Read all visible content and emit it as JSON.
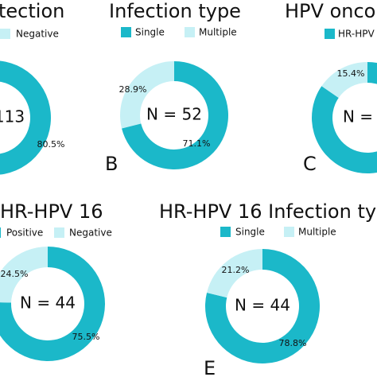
{
  "chart_data": [
    {
      "type": "pie",
      "donut": true,
      "title": "tection",
      "categories": [
        null,
        "Negative"
      ],
      "values": [
        80.5,
        19.5
      ],
      "value_labels": [
        "80.5%",
        null
      ],
      "colors": [
        "#1bb8c9",
        "#c6f0f5"
      ],
      "center_label": "113"
    },
    {
      "type": "pie",
      "donut": true,
      "title": "Infection type",
      "categories": [
        "Single",
        "Multiple"
      ],
      "values": [
        71.1,
        28.9
      ],
      "value_labels": [
        "71.1%",
        "28.9%"
      ],
      "colors": [
        "#1bb8c9",
        "#c6f0f5"
      ],
      "center_label": "N = 52",
      "panel_label": "B"
    },
    {
      "type": "pie",
      "donut": true,
      "title": "HPV onco",
      "categories": [
        "HR-HPV",
        null
      ],
      "values": [
        84.6,
        15.4
      ],
      "value_labels": [
        null,
        "15.4%"
      ],
      "colors": [
        "#1bb8c9",
        "#c6f0f5"
      ],
      "center_label": "N =",
      "panel_label": "C"
    },
    {
      "type": "pie",
      "donut": true,
      "title": "HR-HPV 16",
      "categories": [
        "Positive",
        "Negative"
      ],
      "values": [
        75.5,
        24.5
      ],
      "value_labels": [
        "75.5%",
        "24.5%"
      ],
      "colors": [
        "#1bb8c9",
        "#c6f0f5"
      ],
      "center_label": "N = 44"
    },
    {
      "type": "pie",
      "donut": true,
      "title": "HR-HPV 16 Infection typ",
      "categories": [
        "Single",
        "Multiple"
      ],
      "values": [
        78.8,
        21.2
      ],
      "value_labels": [
        "78.8%",
        "21.2%"
      ],
      "colors": [
        "#1bb8c9",
        "#c6f0f5"
      ],
      "center_label": "N = 44",
      "panel_label": "E"
    }
  ]
}
